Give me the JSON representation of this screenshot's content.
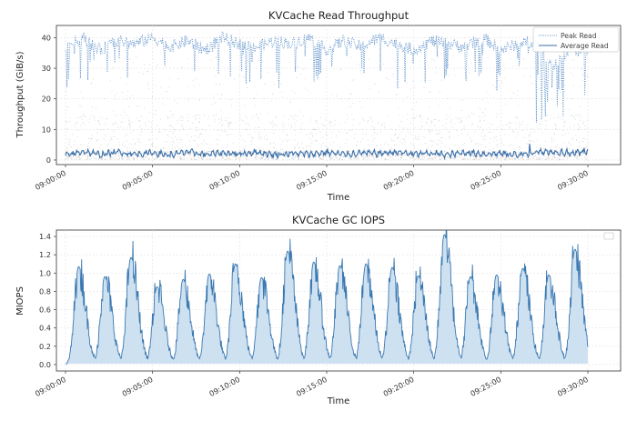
{
  "chart_data": [
    {
      "type": "line",
      "title": "KVCache Read Throughput",
      "xlabel": "Time",
      "ylabel": "Throughput (GiB/s)",
      "x_ticks": [
        "09:00:00",
        "09:05:00",
        "09:10:00",
        "09:15:00",
        "09:20:00",
        "09:25:00",
        "09:30:00"
      ],
      "x_range": [
        "09:00:00",
        "09:30:00"
      ],
      "y_ticks": [
        0,
        10,
        20,
        30,
        40
      ],
      "ylim": [
        -1.5,
        44
      ],
      "grid": true,
      "legend": "top-right",
      "series": [
        {
          "name": "Peak Read",
          "style": "dotted",
          "color": "#5b8fc9",
          "x": [
            "09:00:00",
            "09:01:00",
            "09:02:00",
            "09:03:00",
            "09:04:00",
            "09:05:00",
            "09:06:00",
            "09:07:00",
            "09:08:00",
            "09:09:00",
            "09:10:00",
            "09:11:00",
            "09:12:00",
            "09:13:00",
            "09:14:00",
            "09:15:00",
            "09:16:00",
            "09:17:00",
            "09:18:00",
            "09:19:00",
            "09:20:00",
            "09:21:00",
            "09:22:00",
            "09:23:00",
            "09:24:00",
            "09:25:00",
            "09:26:00",
            "09:27:00",
            "09:28:00",
            "09:29:00",
            "09:30:00"
          ],
          "values": [
            37,
            40,
            36,
            39,
            38,
            40,
            37,
            39,
            36,
            40,
            38,
            37,
            39,
            38,
            40,
            36,
            39,
            37,
            40,
            38,
            36,
            39,
            38,
            37,
            40,
            36,
            38,
            39,
            30,
            37,
            34
          ]
        },
        {
          "name": "Average Read",
          "style": "solid",
          "color": "#3a6fa8",
          "x": [
            "09:00:00",
            "09:01:00",
            "09:02:00",
            "09:03:00",
            "09:04:00",
            "09:05:00",
            "09:06:00",
            "09:07:00",
            "09:08:00",
            "09:09:00",
            "09:10:00",
            "09:11:00",
            "09:12:00",
            "09:13:00",
            "09:14:00",
            "09:15:00",
            "09:16:00",
            "09:17:00",
            "09:18:00",
            "09:19:00",
            "09:20:00",
            "09:21:00",
            "09:22:00",
            "09:23:00",
            "09:24:00",
            "09:25:00",
            "09:26:00",
            "09:27:00",
            "09:28:00",
            "09:29:00",
            "09:30:00"
          ],
          "values": [
            1.5,
            2.8,
            1.7,
            2.6,
            1.9,
            2.4,
            1.6,
            2.7,
            1.8,
            2.3,
            2.0,
            2.6,
            1.7,
            2.2,
            1.9,
            2.5,
            1.8,
            2.3,
            2.1,
            2.6,
            1.9,
            2.2,
            1.7,
            2.5,
            2.0,
            2.1,
            1.8,
            2.6,
            2.8,
            2.3,
            2.4
          ]
        }
      ]
    },
    {
      "type": "area",
      "title": "KVCache GC IOPS",
      "xlabel": "Time",
      "ylabel": "MIOPS",
      "x_ticks": [
        "09:00:00",
        "09:05:00",
        "09:10:00",
        "09:15:00",
        "09:20:00",
        "09:25:00",
        "09:30:00"
      ],
      "x_range": [
        "09:00:00",
        "09:30:00"
      ],
      "y_ticks": [
        0.0,
        0.2,
        0.4,
        0.6,
        0.8,
        1.0,
        1.2,
        1.4
      ],
      "ylim": [
        -0.07,
        1.47
      ],
      "grid": true,
      "legend": "top-right",
      "series": [
        {
          "color": "#3a78b0",
          "fill": "#c5dcef",
          "peaks": [
            {
              "x": "09:00:45",
              "value": 1.07
            },
            {
              "x": "09:02:15",
              "value": 0.96
            },
            {
              "x": "09:03:45",
              "value": 1.17
            },
            {
              "x": "09:05:15",
              "value": 0.85
            },
            {
              "x": "09:06:45",
              "value": 0.93
            },
            {
              "x": "09:08:15",
              "value": 0.99
            },
            {
              "x": "09:09:45",
              "value": 1.1
            },
            {
              "x": "09:11:15",
              "value": 0.95
            },
            {
              "x": "09:12:45",
              "value": 1.24
            },
            {
              "x": "09:14:15",
              "value": 1.12
            },
            {
              "x": "09:15:45",
              "value": 1.08
            },
            {
              "x": "09:17:15",
              "value": 1.1
            },
            {
              "x": "09:18:45",
              "value": 1.06
            },
            {
              "x": "09:20:15",
              "value": 0.97
            },
            {
              "x": "09:21:45",
              "value": 1.42
            },
            {
              "x": "09:23:15",
              "value": 0.96
            },
            {
              "x": "09:24:45",
              "value": 0.98
            },
            {
              "x": "09:26:15",
              "value": 1.05
            },
            {
              "x": "09:27:45",
              "value": 0.98
            },
            {
              "x": "09:29:15",
              "value": 1.26
            }
          ]
        }
      ]
    }
  ]
}
